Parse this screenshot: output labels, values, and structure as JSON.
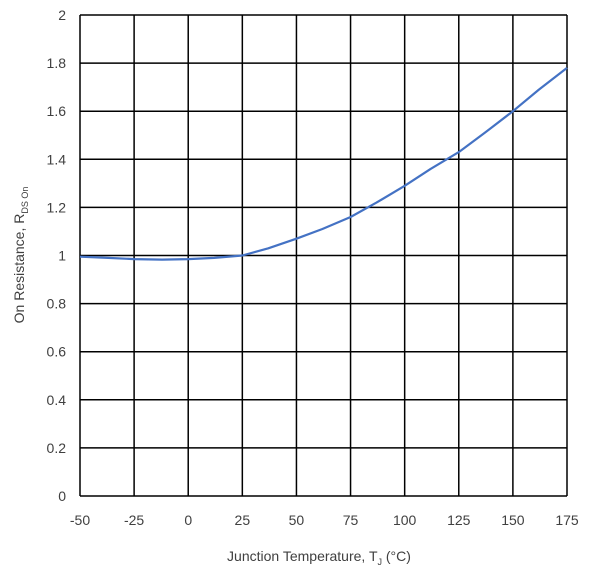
{
  "chart_data": {
    "type": "line",
    "title": "",
    "xlabel": {
      "main": "Junction Temperature, T",
      "sub": "J",
      "tail": " (°C)"
    },
    "ylabel": {
      "main": "On Resistance, R",
      "sub": "DS On"
    },
    "xlim": [
      -50,
      175
    ],
    "ylim": [
      0,
      2
    ],
    "x_ticks": [
      -50,
      -25,
      0,
      25,
      50,
      75,
      100,
      125,
      150,
      175
    ],
    "y_ticks": [
      0,
      0.2,
      0.4,
      0.6,
      0.8,
      1,
      1.2,
      1.4,
      1.6,
      1.8,
      2
    ],
    "grid": true,
    "series": [
      {
        "color": "#4472c4",
        "x": [
          -50,
          -37,
          -25,
          -12,
          0,
          12,
          25,
          37,
          50,
          62,
          75,
          87,
          100,
          112,
          125,
          137,
          150,
          162,
          175
        ],
        "y": [
          0.995,
          0.99,
          0.985,
          0.983,
          0.985,
          0.99,
          1.0,
          1.03,
          1.07,
          1.11,
          1.16,
          1.22,
          1.29,
          1.36,
          1.43,
          1.51,
          1.6,
          1.69,
          1.78
        ]
      }
    ]
  }
}
